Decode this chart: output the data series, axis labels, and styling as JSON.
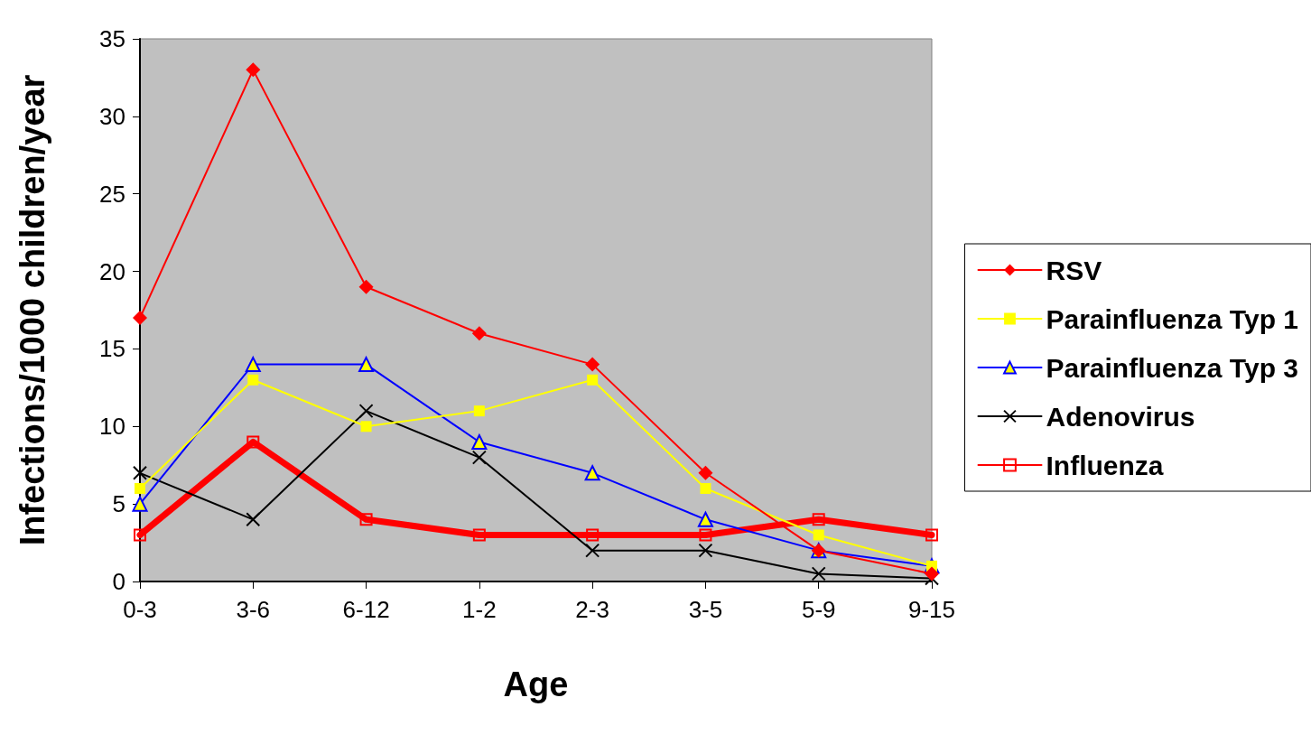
{
  "chart_data": {
    "type": "line",
    "xlabel": "Age",
    "ylabel": "Infections/1000 children/year",
    "categories": [
      "0-3",
      "3-6",
      "6-12",
      "1-2",
      "2-3",
      "3-5",
      "5-9",
      "9-15"
    ],
    "series": [
      {
        "name": "RSV",
        "color": "#ff0000",
        "marker": "diamond",
        "values": [
          17,
          33,
          19,
          16,
          14,
          7,
          2,
          0.5
        ]
      },
      {
        "name": "Parainfluenza Typ 1",
        "color": "#ffff00",
        "marker": "square",
        "values": [
          6,
          13,
          10,
          11,
          13,
          6,
          3,
          1
        ]
      },
      {
        "name": "Parainfluenza Typ 3",
        "color": "#0000ff",
        "marker": "triangle",
        "values": [
          5,
          14,
          14,
          9,
          7,
          4,
          2,
          1
        ]
      },
      {
        "name": "Adenovirus",
        "color": "#000000",
        "marker": "cross",
        "values": [
          7,
          4,
          11,
          8,
          2,
          2,
          0.5,
          0.2
        ]
      },
      {
        "name": "Influenza",
        "color": "#ff0000",
        "marker": "square",
        "values": [
          3,
          9,
          4,
          3,
          3,
          3,
          4,
          3
        ]
      }
    ],
    "ylim": [
      0,
      35
    ],
    "yticks": [
      0,
      5,
      10,
      15,
      20,
      25,
      30,
      35
    ],
    "grid": false,
    "legend": "right",
    "line_style": "solid"
  }
}
